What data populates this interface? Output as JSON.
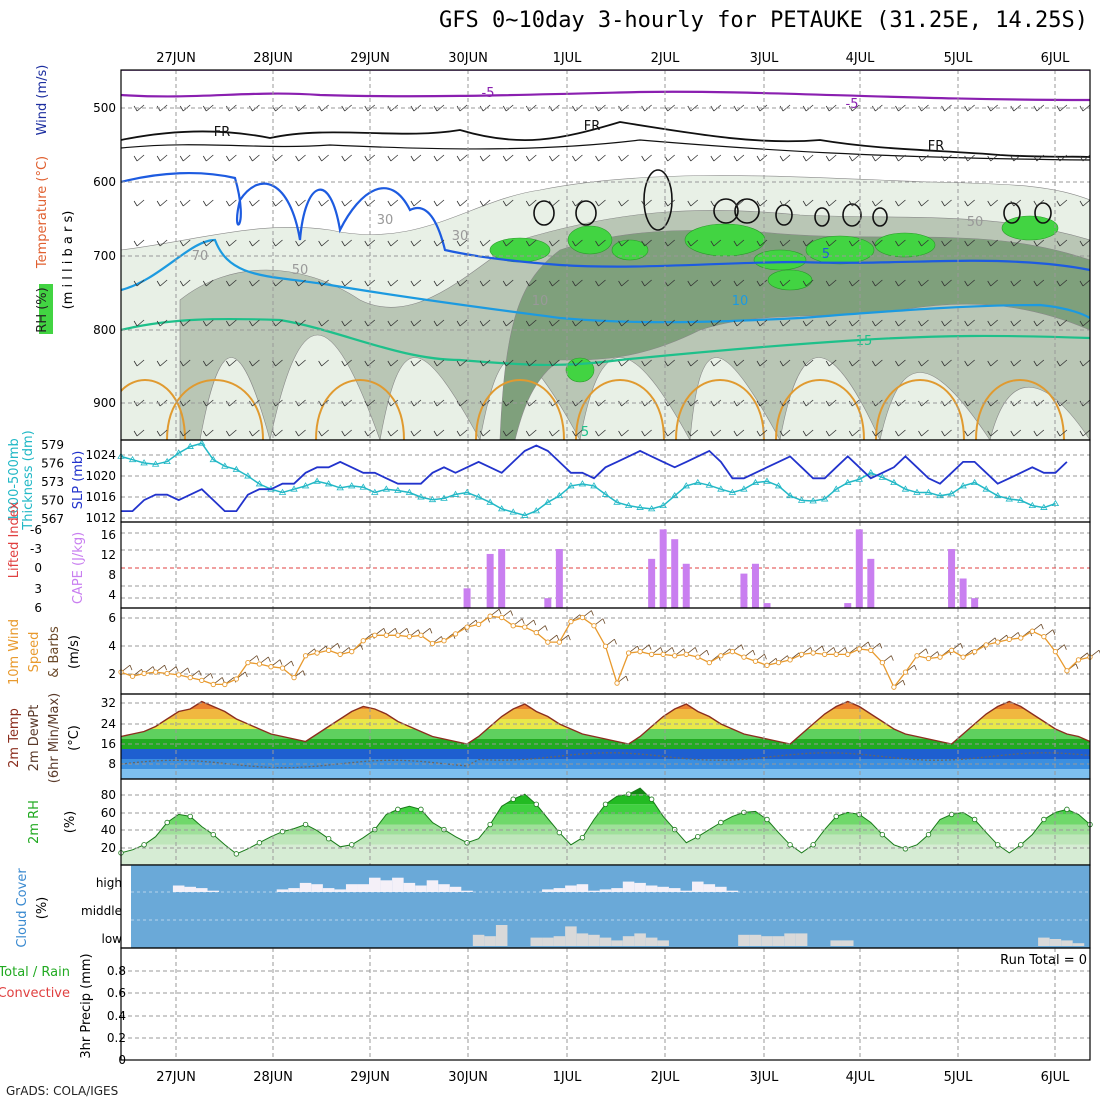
{
  "title": "GFS 0~10day 3-hourly for PETAUKE (31.25E, 14.25S)",
  "footer": "GrADS: COLA/IGES",
  "dates": [
    "27JUN",
    "28JUN",
    "29JUN",
    "30JUN",
    "1JUL",
    "2JUL",
    "3JUL",
    "4JUL",
    "5JUL",
    "6JUL"
  ],
  "colors": {
    "grid": "#999999",
    "rh_light": "#e8f0e6",
    "rh_mid": "#b9c6b5",
    "rh_dark": "#7fa07c",
    "rh_green": "#42d442",
    "thickness": "#22b8c6",
    "slp": "#2233cc",
    "cape": "#c97ff0",
    "wind_speed": "#e89a2e",
    "temp": "#8b2e1e",
    "rh2m": "#22dd22",
    "cloud": "#6aa9d8",
    "cloud_bar": "#d9d9d9"
  },
  "panels": {
    "upper": {
      "labels": [
        "Wind (m/s)",
        "Temperature (°C)",
        "(m i l l i b a r s)",
        "RH (%)"
      ],
      "yticks": [
        "500",
        "600",
        "700",
        "800",
        "900"
      ],
      "contour_labels": [
        "-5",
        "-5",
        "FR",
        "FR",
        "FR",
        "5",
        "10",
        "15",
        "5",
        "10",
        "30",
        "30",
        "50",
        "50",
        "70"
      ]
    },
    "slp": {
      "labels": [
        "1000-500mb",
        "Thickness (dm)",
        "SLP (mb)"
      ],
      "left_ticks": [
        "579",
        "576",
        "573",
        "570",
        "567"
      ],
      "right_ticks": [
        "1024",
        "1020",
        "1016",
        "1012"
      ]
    },
    "cape": {
      "labels": [
        "Lifted Index",
        "CAPE (J/kg)"
      ],
      "left_ticks": [
        "-6",
        "-3",
        "0",
        "3",
        "6"
      ],
      "right_ticks": [
        "16",
        "12",
        "8",
        "4"
      ]
    },
    "wind10": {
      "labels": [
        "10m Wind",
        "Speed",
        "& Barbs",
        "(m/s)"
      ],
      "ticks": [
        "6",
        "4",
        "2"
      ]
    },
    "temp": {
      "labels": [
        "2m Temp",
        "2m DewPt",
        "(6hr Min/Max)",
        "(°C)"
      ],
      "ticks": [
        "32",
        "24",
        "16",
        "8"
      ]
    },
    "rh": {
      "labels": [
        "2m RH",
        "(%)"
      ],
      "ticks": [
        "80",
        "60",
        "40",
        "20"
      ]
    },
    "cloud": {
      "labels": [
        "Cloud Cover",
        "(%)"
      ],
      "ticks": [
        "high",
        "middle",
        "low"
      ]
    },
    "precip": {
      "labels": [
        "Total / Rain",
        "Convective",
        "3hr Precip (mm)"
      ],
      "ticks": [
        "0.8",
        "0.6",
        "0.4",
        "0.2",
        "0"
      ],
      "run_total": "Run Total = 0"
    }
  },
  "chart_data": [
    {
      "type": "line",
      "name": "1000-500mb Thickness (dm)",
      "x_unit": "3-hourly steps from 26JUN 12Z",
      "ylim": [
        567,
        579
      ],
      "values": [
        577,
        576.5,
        576,
        575.8,
        576.2,
        577.5,
        578.5,
        579,
        576.5,
        575.5,
        575,
        574,
        572.8,
        572,
        571.5,
        572,
        572.5,
        573.2,
        572.8,
        572.2,
        572.5,
        572.3,
        571.5,
        572,
        571.8,
        571.5,
        570.8,
        570.4,
        570.6,
        571.2,
        571.5,
        570.8,
        570,
        569,
        568.5,
        568,
        568.7,
        570,
        571,
        572.5,
        572.8,
        572.5,
        571.2,
        570,
        569.5,
        569.2,
        569,
        569.5,
        571,
        572.5,
        573,
        572.6,
        572,
        571.5,
        572,
        573,
        573.2,
        572.5,
        571,
        570.3,
        570.2,
        570.5,
        572,
        573,
        573.5,
        574.5,
        573.8,
        573,
        572,
        571.5,
        571.5,
        571,
        571.3,
        572.5,
        573,
        572,
        571,
        570.5,
        570.3,
        569.5,
        569.2,
        569.8
      ]
    },
    {
      "type": "line",
      "name": "SLP (mb)",
      "ylim": [
        1012,
        1026
      ],
      "values": [
        1013,
        1013,
        1015,
        1016,
        1016,
        1015,
        1016,
        1017,
        1015,
        1013,
        1013,
        1016,
        1017,
        1017,
        1018,
        1018,
        1020,
        1021,
        1021,
        1022,
        1021,
        1020,
        1020,
        1019,
        1018,
        1018,
        1018,
        1020,
        1021,
        1020,
        1021,
        1022,
        1021,
        1020,
        1022,
        1024,
        1025,
        1024,
        1022,
        1020,
        1020,
        1019,
        1021,
        1022,
        1023,
        1024,
        1023,
        1022,
        1021,
        1022,
        1023,
        1024,
        1022,
        1019,
        1019,
        1020,
        1021,
        1022,
        1023,
        1021,
        1019,
        1019,
        1021,
        1023,
        1021,
        1019,
        1020,
        1021,
        1023,
        1021,
        1019,
        1018,
        1020,
        1022,
        1022,
        1020,
        1018,
        1019,
        1020,
        1021,
        1020,
        1020,
        1022
      ]
    },
    {
      "type": "bar",
      "name": "CAPE (J/kg)",
      "ylim": [
        0,
        16
      ],
      "x_steps": [
        30,
        32,
        33,
        37,
        38,
        46,
        47,
        48,
        49,
        50,
        54,
        55,
        56,
        63,
        64,
        65,
        71,
        72,
        73,
        74
      ],
      "values": [
        4,
        11,
        12,
        2,
        12,
        10,
        16,
        14,
        9,
        0,
        7,
        9,
        1,
        1,
        16,
        10,
        0,
        12,
        6,
        2
      ]
    },
    {
      "type": "line",
      "name": "10m Wind Speed (m/s)",
      "ylim": [
        0,
        7
      ],
      "values": [
        2.1,
        1.8,
        2.0,
        2.1,
        2.0,
        1.9,
        1.7,
        1.5,
        1.2,
        1.2,
        1.6,
        2.8,
        2.7,
        2.5,
        2.4,
        1.7,
        3.3,
        3.5,
        3.7,
        3.4,
        3.6,
        4.4,
        4.8,
        4.8,
        4.8,
        4.7,
        4.8,
        4.2,
        4.4,
        4.9,
        5.4,
        5.6,
        6.2,
        6.1,
        5.5,
        5.4,
        5.0,
        4.3,
        4.3,
        5.8,
        6.1,
        5.5,
        4.0,
        1.3,
        3.5,
        3.6,
        3.4,
        3.4,
        3.3,
        3.4,
        3.2,
        2.8,
        3.3,
        3.6,
        3.2,
        2.9,
        2.6,
        2.8,
        3.0,
        3.4,
        3.5,
        3.4,
        3.4,
        3.4,
        3.8,
        3.7,
        2.8,
        1.0,
        2.1,
        3.3,
        3.1,
        3.2,
        3.7,
        3.2,
        3.6,
        4.1,
        4.3,
        4.5,
        4.6,
        5.1,
        4.7,
        3.6,
        2.2,
        3.0,
        3.2
      ]
    },
    {
      "type": "area",
      "name": "2m Temp (°C)",
      "ylim": [
        0,
        34
      ],
      "values": [
        17,
        18,
        19,
        21,
        24,
        27,
        28,
        31,
        29,
        27,
        24,
        22,
        20,
        18,
        17,
        16,
        15,
        18,
        21,
        24,
        27,
        29,
        28,
        26,
        23,
        21,
        19,
        17,
        16,
        15,
        14,
        17,
        21,
        25,
        28,
        30,
        27,
        25,
        22,
        20,
        18,
        17,
        16,
        15,
        14,
        17,
        21,
        25,
        28,
        30,
        27,
        25,
        22,
        20,
        18,
        17,
        16,
        15,
        14,
        18,
        22,
        26,
        29,
        31,
        29,
        26,
        23,
        20,
        18,
        17,
        16,
        15,
        14,
        18,
        22,
        26,
        29,
        31,
        29,
        26,
        23,
        20,
        18,
        17,
        15
      ]
    },
    {
      "type": "area",
      "name": "2m RH (%)",
      "ylim": [
        10,
        95
      ],
      "values": [
        22,
        25,
        30,
        38,
        52,
        60,
        58,
        48,
        40,
        30,
        21,
        26,
        32,
        38,
        43,
        46,
        50,
        44,
        36,
        28,
        30,
        37,
        45,
        60,
        65,
        68,
        65,
        52,
        45,
        38,
        32,
        36,
        50,
        68,
        75,
        80,
        70,
        56,
        42,
        30,
        37,
        55,
        70,
        78,
        80,
        86,
        75,
        58,
        45,
        32,
        38,
        45,
        52,
        58,
        62,
        63,
        55,
        42,
        30,
        22,
        30,
        45,
        58,
        62,
        60,
        52,
        40,
        30,
        26,
        30,
        40,
        55,
        60,
        62,
        55,
        42,
        30,
        22,
        30,
        40,
        55,
        62,
        65,
        60,
        50
      ]
    },
    {
      "type": "bar",
      "name": "Cloud Cover high (%)",
      "ylim": [
        0,
        100
      ],
      "values": [
        0,
        0,
        0,
        0,
        0,
        25,
        20,
        15,
        5,
        0,
        0,
        0,
        0,
        0,
        10,
        15,
        35,
        30,
        15,
        10,
        30,
        30,
        55,
        45,
        55,
        35,
        25,
        45,
        30,
        20,
        5,
        0,
        0,
        0,
        0,
        0,
        0,
        10,
        15,
        25,
        30,
        5,
        10,
        15,
        40,
        35,
        25,
        20,
        15,
        5,
        40,
        30,
        20,
        5,
        0,
        0,
        0,
        0,
        0,
        0,
        0,
        0,
        0,
        0,
        0,
        0,
        0,
        0,
        0,
        0,
        0,
        0,
        0,
        0,
        0,
        0,
        0,
        0,
        0,
        0,
        0,
        0,
        0,
        0,
        0
      ]
    },
    {
      "type": "bar",
      "name": "Cloud Cover low (%)",
      "ylim": [
        0,
        100
      ],
      "values": [
        0,
        0,
        0,
        0,
        0,
        0,
        0,
        0,
        0,
        0,
        0,
        0,
        0,
        0,
        0,
        0,
        0,
        0,
        0,
        0,
        0,
        0,
        0,
        0,
        0,
        0,
        0,
        0,
        0,
        0,
        0,
        40,
        35,
        75,
        0,
        0,
        30,
        30,
        35,
        70,
        45,
        40,
        30,
        20,
        35,
        45,
        30,
        20,
        0,
        0,
        0,
        0,
        0,
        0,
        40,
        40,
        35,
        35,
        45,
        45,
        0,
        0,
        20,
        20,
        0,
        0,
        0,
        0,
        0,
        0,
        0,
        0,
        0,
        0,
        0,
        0,
        0,
        0,
        0,
        0,
        30,
        25,
        20,
        10,
        0
      ]
    },
    {
      "type": "bar",
      "name": "3hr Precip (mm)",
      "ylim": [
        0,
        1
      ],
      "values": [],
      "run_total": 0
    }
  ]
}
